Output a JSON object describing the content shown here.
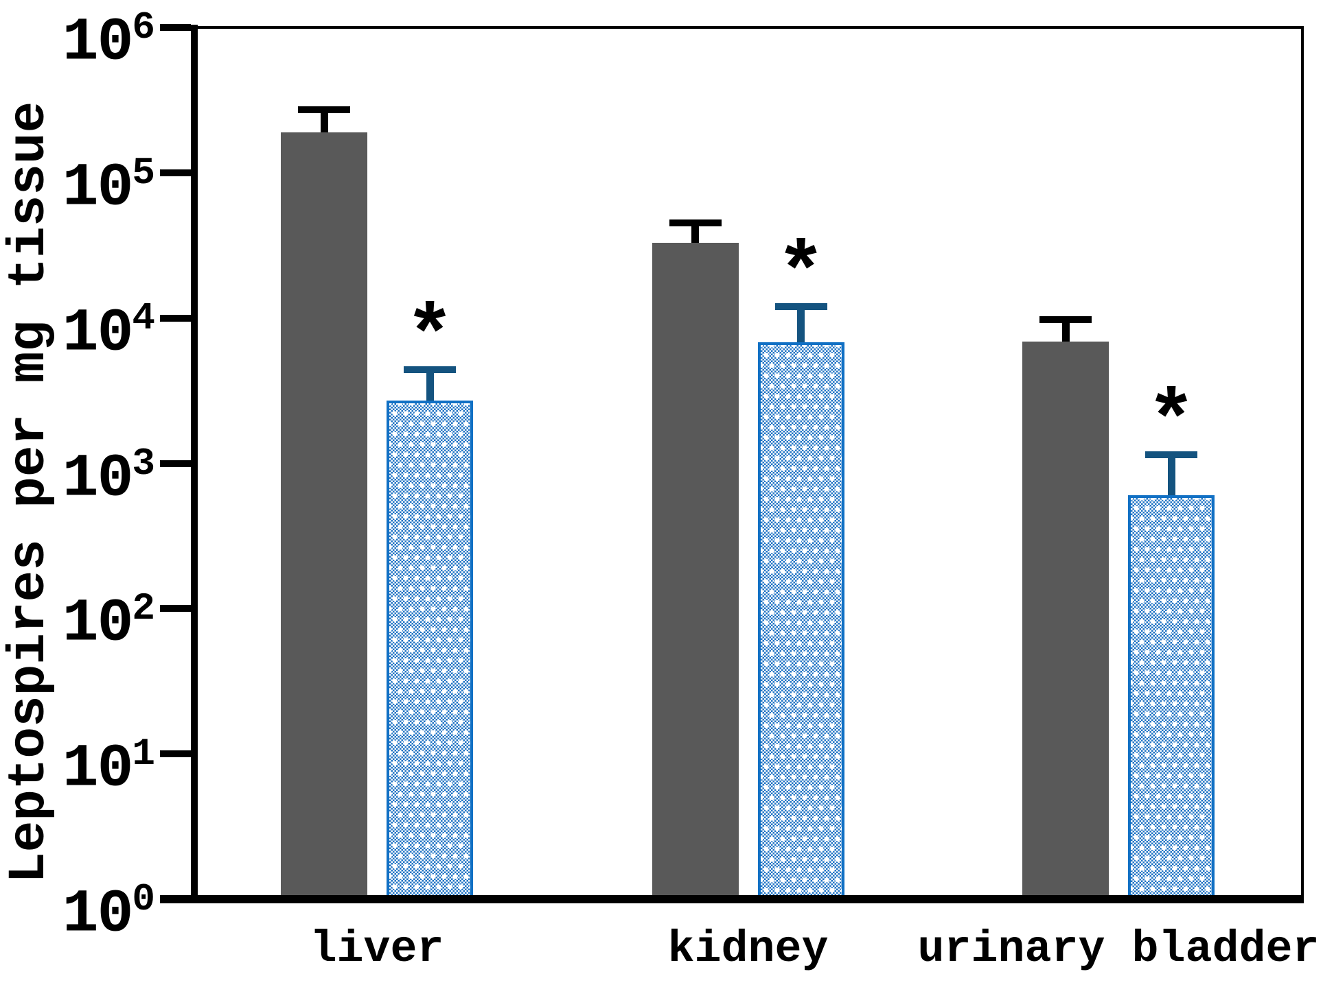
{
  "chart_data": {
    "type": "bar",
    "title": "",
    "xlabel": "",
    "ylabel": "Leptospires per mg tissue",
    "y_scale": "log10",
    "ylim": [
      1,
      1000000
    ],
    "y_tick_exponents": [
      0,
      1,
      2,
      3,
      4,
      5,
      6
    ],
    "y_tick_label_base": "10",
    "grid": "off",
    "legend": "none",
    "categories": [
      "liver",
      "kidney",
      "urinary bladder"
    ],
    "series": [
      {
        "name": "solid-gray-bars",
        "style": "solid",
        "fill_color": "#595959",
        "error_bar_color": "#000000",
        "values": [
          190000,
          33000,
          6900
        ],
        "error_upper": [
          270000,
          45000,
          9800
        ],
        "significant": [
          false,
          false,
          false
        ]
      },
      {
        "name": "blue-hatched-bars",
        "style": "checker-dot-hatch",
        "pattern_color": "#2174c4",
        "border_color": "#1170c4",
        "error_bar_color": "#14537f",
        "values": [
          2700,
          6800,
          600
        ],
        "error_upper": [
          4400,
          12000,
          1150
        ],
        "significant": [
          true,
          true,
          true
        ]
      }
    ],
    "significance_marker": "*"
  }
}
